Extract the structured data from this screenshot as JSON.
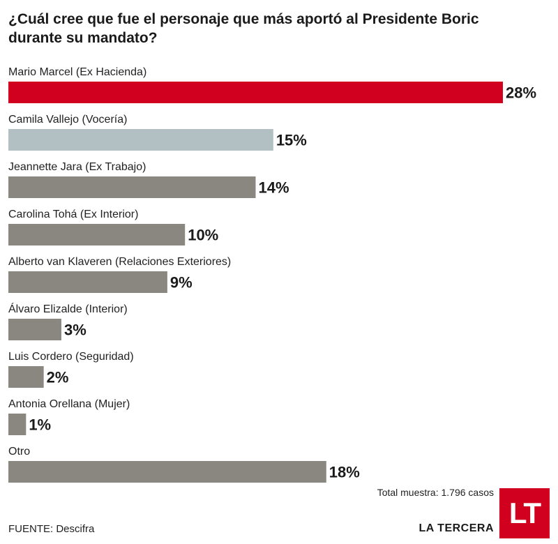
{
  "title": "¿Cuál cree que fue el personaje que más aportó al Presidente Boric durante su mandato?",
  "chart_data": {
    "type": "bar",
    "orientation": "horizontal",
    "title": "¿Cuál cree que fue el personaje que más aportó al Presidente Boric durante su mandato?",
    "categories": [
      "Mario Marcel (Ex Hacienda)",
      "Camila Vallejo (Vocería)",
      "Jeannette Jara (Ex Trabajo)",
      "Carolina Tohá (Ex Interior)",
      "Alberto van Klaveren (Relaciones Exteriores)",
      "Álvaro Elizalde (Interior)",
      "Luis Cordero (Seguridad)",
      "Antonia Orellana (Mujer)",
      "Otro"
    ],
    "values": [
      28,
      15,
      14,
      10,
      9,
      3,
      2,
      1,
      18
    ],
    "value_labels": [
      "28%",
      "15%",
      "14%",
      "10%",
      "9%",
      "3%",
      "2%",
      "1%",
      "18%"
    ],
    "colors": [
      "#d1001f",
      "#b3c0c3",
      "#8a8680",
      "#8a8680",
      "#8a8680",
      "#8a8680",
      "#8a8680",
      "#8a8680",
      "#8a8680"
    ],
    "xlim": [
      0,
      28
    ],
    "grid": false,
    "legend": "none"
  },
  "note": "Total muestra: 1.796 casos",
  "source": {
    "label": "FUENTE:",
    "value": "Descifra"
  },
  "publisher": "LA TERCERA",
  "logo": {
    "text": "LT",
    "color": "#d1001f"
  }
}
